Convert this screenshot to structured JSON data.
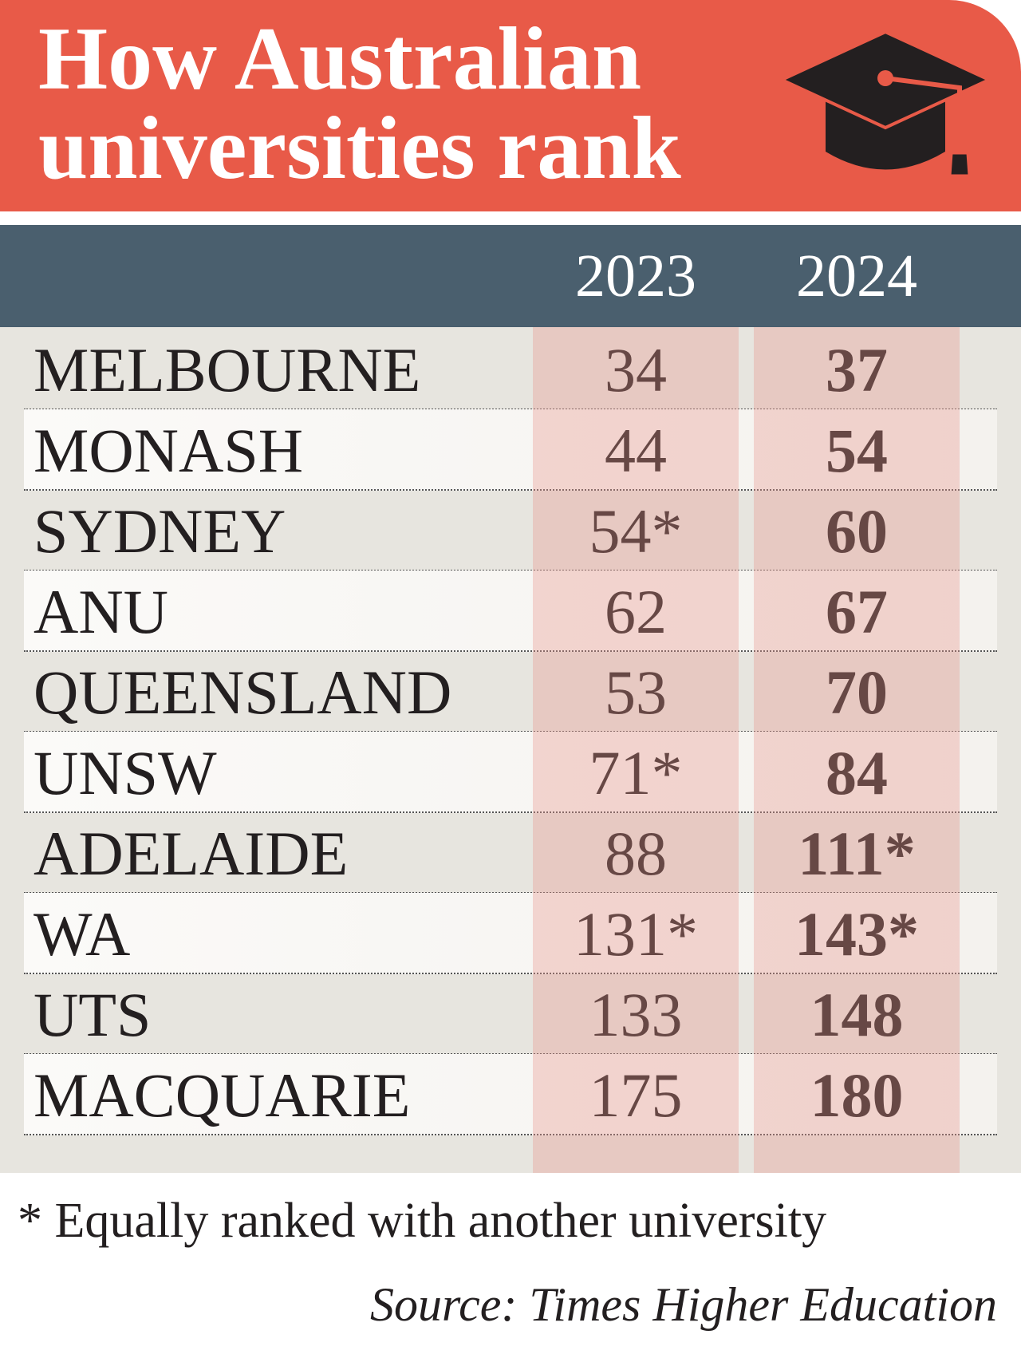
{
  "header": {
    "title": "How Australian universities rank"
  },
  "table": {
    "columns": [
      "2023",
      "2024"
    ],
    "rows": [
      [
        "MELBOURNE",
        "34",
        "37"
      ],
      [
        "MONASH",
        "44",
        "54"
      ],
      [
        "SYDNEY",
        "54*",
        "60"
      ],
      [
        "ANU",
        "62",
        "67"
      ],
      [
        "QUEENSLAND",
        "53",
        "70"
      ],
      [
        "UNSW",
        "71*",
        "84"
      ],
      [
        "ADELAIDE",
        "88",
        "111*"
      ],
      [
        "WA",
        "131*",
        "143*"
      ],
      [
        "UTS",
        "133",
        "148"
      ],
      [
        "MACQUARIE",
        "175",
        "180"
      ]
    ]
  },
  "footnote": "* Equally ranked with another university",
  "source": "Source: Times Higher Education"
}
